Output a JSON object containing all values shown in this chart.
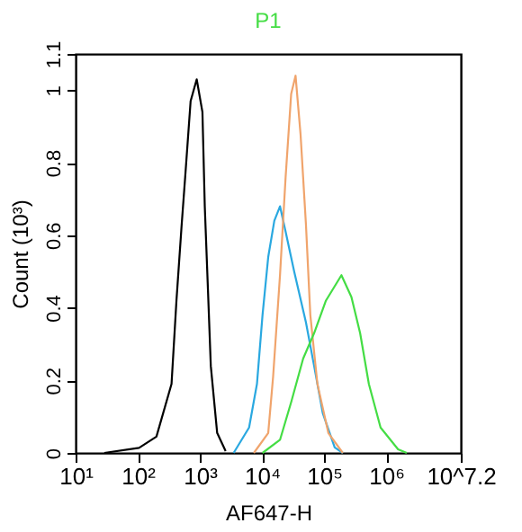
{
  "chart_data": {
    "type": "line",
    "title": "P1",
    "xlabel": "AF647-H",
    "ylabel": "Count (10³)",
    "log": "x",
    "grid": false,
    "legend": false,
    "marker": "none",
    "line_style": "solid",
    "xlim": [
      10,
      15848932
    ],
    "ylim": [
      0,
      1.1
    ],
    "xticks": [
      {
        "value": 10,
        "label": "10¹"
      },
      {
        "value": 100,
        "label": "10²"
      },
      {
        "value": 1000,
        "label": "10³"
      },
      {
        "value": 10000,
        "label": "10⁴"
      },
      {
        "value": 100000,
        "label": "10⁵"
      },
      {
        "value": 1000000,
        "label": "10⁶"
      },
      {
        "value": 15848932,
        "label": "10^7.2"
      }
    ],
    "yticks": [
      0,
      0.2,
      0.4,
      0.6,
      0.8,
      1,
      1.1
    ],
    "series": [
      {
        "color": "#000000",
        "x": [
          29,
          105,
          200,
          350,
          420,
          510,
          580,
          710,
          890,
          1100,
          1200,
          1350,
          1500,
          1900,
          2600
        ],
        "values": [
          0,
          0.014,
          0.045,
          0.19,
          0.42,
          0.63,
          0.76,
          0.97,
          1.03,
          0.94,
          0.68,
          0.45,
          0.24,
          0.055,
          0.005
        ]
      },
      {
        "color": "#2aa8e0",
        "x": [
          3500,
          6200,
          8300,
          10200,
          12600,
          15800,
          19500,
          24000,
          33000,
          51000,
          69000,
          95000,
          148000,
          200000
        ],
        "values": [
          0,
          0.07,
          0.19,
          0.38,
          0.54,
          0.64,
          0.68,
          0.61,
          0.5,
          0.36,
          0.24,
          0.11,
          0.015,
          0
        ]
      },
      {
        "color": "#f0a46c",
        "x": [
          7400,
          12600,
          15100,
          19500,
          24000,
          29500,
          34700,
          41700,
          51000,
          60000,
          78000,
          117000,
          200000
        ],
        "values": [
          0,
          0.055,
          0.21,
          0.49,
          0.76,
          0.99,
          1.04,
          0.88,
          0.63,
          0.38,
          0.19,
          0.055,
          0
        ]
      },
      {
        "color": "#44dd44",
        "x": [
          10200,
          19500,
          29500,
          46000,
          69000,
          107000,
          190000,
          275000,
          380000,
          525000,
          810000,
          1550000,
          2140000
        ],
        "values": [
          0,
          0.036,
          0.14,
          0.26,
          0.33,
          0.42,
          0.49,
          0.43,
          0.33,
          0.19,
          0.07,
          0.01,
          0
        ]
      }
    ]
  }
}
